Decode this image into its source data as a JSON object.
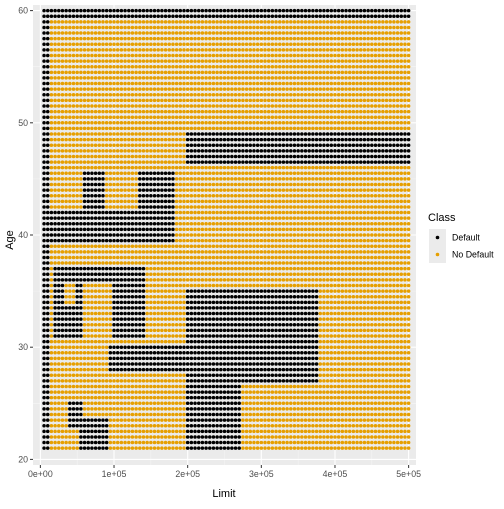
{
  "chart_data": {
    "type": "scatter",
    "title": "",
    "xlabel": "Limit",
    "ylabel": "Age",
    "xlim": [
      -10000,
      510000
    ],
    "ylim": [
      19.5,
      60.5
    ],
    "x_ticks": [
      0,
      100000,
      200000,
      300000,
      400000,
      500000
    ],
    "x_tick_labels": [
      "0e+00",
      "1e+05",
      "2e+05",
      "3e+05",
      "4e+05",
      "5e+05"
    ],
    "y_ticks": [
      20,
      30,
      40,
      50,
      60
    ],
    "y_tick_labels": [
      "20",
      "30",
      "40",
      "50",
      "60"
    ],
    "grid": true,
    "panel_background": "#ebebeb",
    "legend": {
      "title": "Class",
      "placement": "right",
      "entries": [
        {
          "label": "Default",
          "color": "#000000"
        },
        {
          "label": "No Default",
          "color": "#e69f00"
        }
      ]
    },
    "grid_points": {
      "x_start": 5000,
      "x_end": 500000,
      "x_step": 5000,
      "y_start": 21,
      "y_end": 60,
      "y_step": 0.5
    },
    "default_color": "#e69f00",
    "series": [
      {
        "name": "Default",
        "color": "#000000",
        "regions": [
          {
            "x": [
              5000,
              500000
            ],
            "y": [
              59.5,
              60
            ]
          },
          {
            "x": [
              5000,
              10000
            ],
            "y": [
              21,
              60
            ]
          },
          {
            "x": [
              200000,
              500000
            ],
            "y": [
              46.5,
              49
            ]
          },
          {
            "x": [
              5000,
              180000
            ],
            "y": [
              39.5,
              42
            ]
          },
          {
            "x": [
              60000,
              85000
            ],
            "y": [
              42,
              45.5
            ]
          },
          {
            "x": [
              135000,
              180000
            ],
            "y": [
              42,
              45.5
            ]
          },
          {
            "x": [
              20000,
              140000
            ],
            "y": [
              36,
              37
            ]
          },
          {
            "x": [
              20000,
              30000
            ],
            "y": [
              31,
              36
            ]
          },
          {
            "x": [
              20000,
              55000
            ],
            "y": [
              31,
              33.5
            ]
          },
          {
            "x": [
              50000,
              55000
            ],
            "y": [
              33.5,
              36
            ]
          },
          {
            "x": [
              100000,
              140000
            ],
            "y": [
              31,
              36
            ]
          },
          {
            "x": [
              200000,
              375000
            ],
            "y": [
              27,
              35
            ]
          },
          {
            "x": [
              95000,
              270000
            ],
            "y": [
              28,
              30
            ]
          },
          {
            "x": [
              200000,
              270000
            ],
            "y": [
              21,
              28
            ]
          },
          {
            "x": [
              40000,
              55000
            ],
            "y": [
              23,
              25
            ]
          },
          {
            "x": [
              55000,
              90000
            ],
            "y": [
              21,
              23.5
            ]
          }
        ]
      },
      {
        "name": "No Default",
        "color": "#e69f00",
        "regions": [
          {
            "x": [
              5000,
              500000
            ],
            "y": [
              21,
              60
            ],
            "note": ""
          }
        ]
      }
    ]
  }
}
